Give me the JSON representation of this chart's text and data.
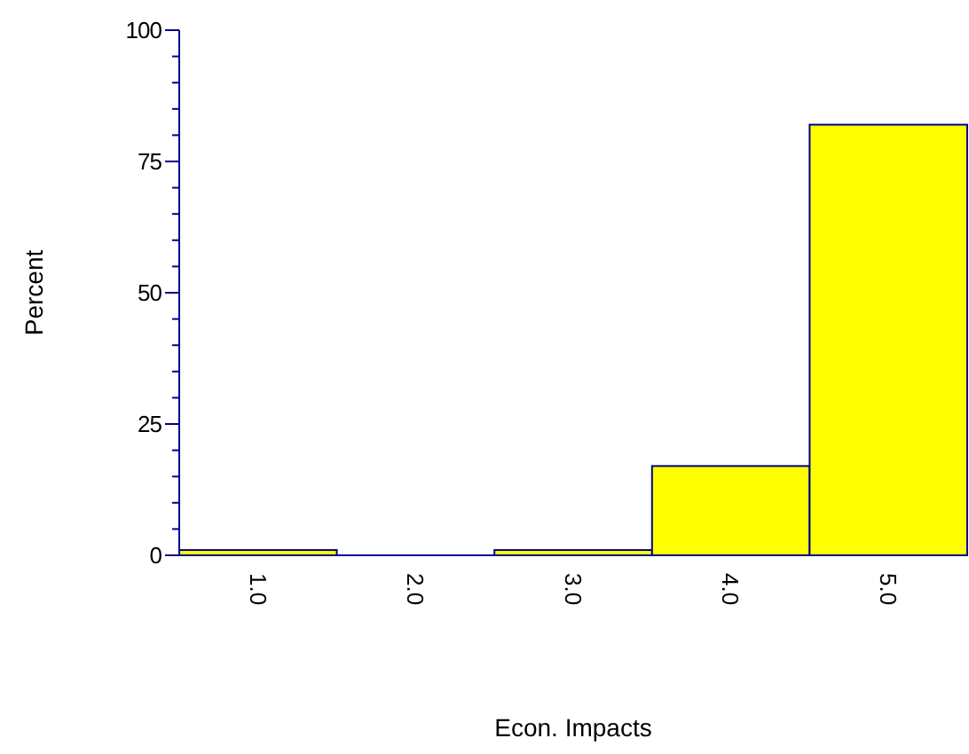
{
  "chart_data": {
    "type": "bar",
    "xlabel": "Econ. Impacts",
    "ylabel": "Percent",
    "categories": [
      "1.0",
      "2.0",
      "3.0",
      "4.0",
      "5.0"
    ],
    "values": [
      1,
      0,
      1,
      17,
      82
    ],
    "color": "#ffff00",
    "ylim": [
      0,
      100
    ],
    "yticks": [
      0,
      {
        "value": 5,
        "label": null
      },
      {
        "value": 10,
        "label": null
      },
      {
        "value": 15,
        "label": null
      },
      {
        "value": 20,
        "label": null
      },
      25,
      {
        "value": 30,
        "label": null
      },
      {
        "value": 35,
        "label": null
      },
      {
        "value": 40,
        "label": null
      },
      {
        "value": 45,
        "label": null
      },
      50,
      {
        "value": 55,
        "label": null
      },
      {
        "value": 60,
        "label": null
      },
      {
        "value": 65,
        "label": null
      },
      {
        "value": 70,
        "label": null
      },
      75,
      {
        "value": 80,
        "label": null
      },
      {
        "value": 85,
        "label": null
      },
      {
        "value": 90,
        "label": null
      },
      {
        "value": 95,
        "label": null
      },
      100
    ],
    "grid": false
  }
}
